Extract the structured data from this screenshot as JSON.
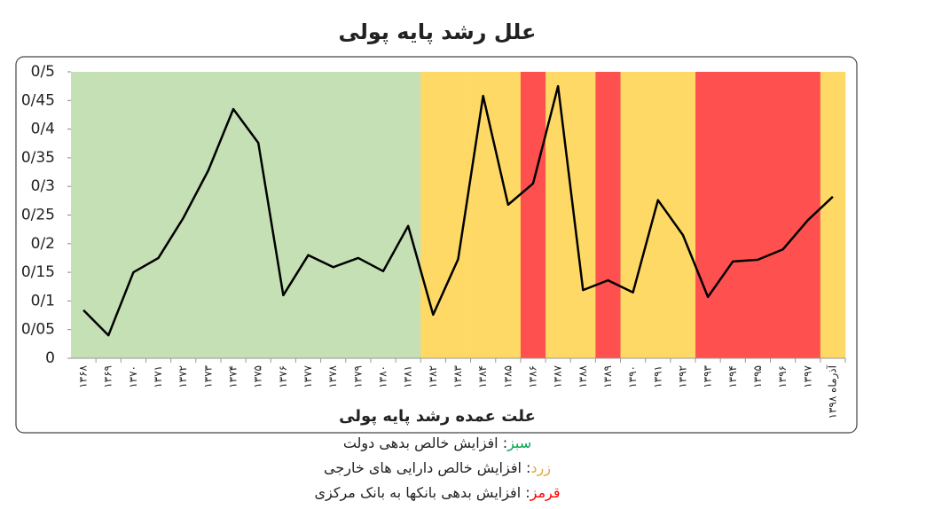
{
  "chart_data": {
    "type": "line",
    "title": "علل رشد پایه پولی",
    "x_label": "علت عمده رشد پایه پولی",
    "categories": [
      "۱۳۶۸",
      "۱۳۶۹",
      "۱۳۷۰",
      "۱۳۷۱",
      "۱۳۷۲",
      "۱۳۷۳",
      "۱۳۷۴",
      "۱۳۷۵",
      "۱۳۷۶",
      "۱۳۷۷",
      "۱۳۷۸",
      "۱۳۷۹",
      "۱۳۸۰",
      "۱۳۸۱",
      "۱۳۸۲",
      "۱۳۸۳",
      "۱۳۸۴",
      "۱۳۸۵",
      "۱۳۸۶",
      "۱۳۸۷",
      "۱۳۸۸",
      "۱۳۸۹",
      "۱۳۹۰",
      "۱۳۹۱",
      "۱۳۹۲",
      "۱۳۹۳",
      "۱۳۹۴",
      "۱۳۹۵",
      "۱۳۹۶",
      "۱۳۹۷",
      "آذرماه ۱۳۹۸"
    ],
    "values": [
      0.084,
      0.04,
      0.15,
      0.175,
      0.245,
      0.328,
      0.435,
      0.376,
      0.11,
      0.18,
      0.159,
      0.175,
      0.152,
      0.231,
      0.076,
      0.173,
      0.458,
      0.268,
      0.305,
      0.475,
      0.119,
      0.136,
      0.115,
      0.276,
      0.215,
      0.107,
      0.169,
      0.172,
      0.19,
      0.241,
      0.282
    ],
    "color": "#000000",
    "category_colors": [
      "#c5e0b4",
      "#c5e0b4",
      "#c5e0b4",
      "#c5e0b4",
      "#c5e0b4",
      "#c5e0b4",
      "#c5e0b4",
      "#c5e0b4",
      "#c5e0b4",
      "#c5e0b4",
      "#c5e0b4",
      "#c5e0b4",
      "#c5e0b4",
      "#c5e0b4",
      "#ffd966",
      "#ffd966",
      "#ffd966",
      "#ffd966",
      "#ff5050",
      "#ffd966",
      "#ffd966",
      "#ff5050",
      "#ffd966",
      "#ffd966",
      "#ffd966",
      "#ff5050",
      "#ff5050",
      "#ff5050",
      "#ff5050",
      "#ff5050",
      "#ffd966"
    ],
    "ylim": [
      0,
      0.5
    ],
    "yticks": [
      0,
      {
        "value": 0.05,
        "label": "0/05"
      },
      {
        "value": 0.1,
        "label": "0/1"
      },
      {
        "value": 0.15,
        "label": "0/15"
      },
      {
        "value": 0.2,
        "label": "0/2"
      },
      {
        "value": 0.25,
        "label": "0/25"
      },
      {
        "value": 0.3,
        "label": "0/3"
      },
      {
        "value": 0.35,
        "label": "0/35"
      },
      {
        "value": 0.4,
        "label": "0/4"
      },
      {
        "value": 0.45,
        "label": "0/45"
      },
      {
        "value": 0.5,
        "label": "0/5"
      }
    ],
    "legend": [
      {
        "name": "سبز",
        "text": ": افزایش خالص بدهی دولت",
        "color": "#00a550"
      },
      {
        "name": "زرد",
        "text": ": افزایش خالص دارایی های خارجی",
        "color": "#e0a93a"
      },
      {
        "name": "قرمز",
        "text": ": افزایش بدهی بانکها به بانک مرکزی",
        "color": "#ff0000"
      }
    ]
  }
}
